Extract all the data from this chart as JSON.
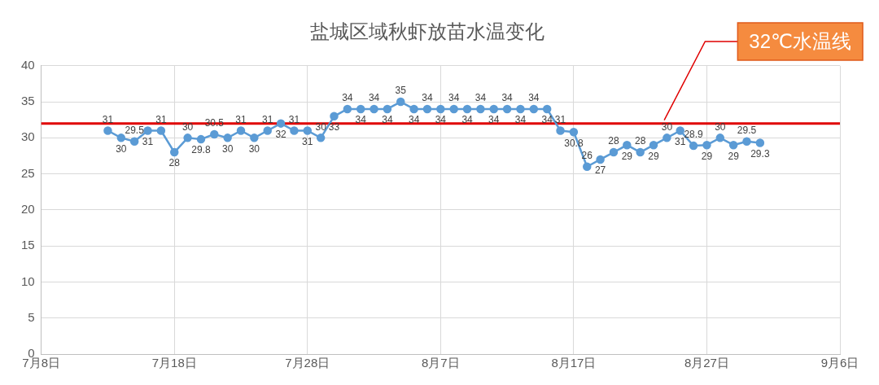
{
  "chart_data": {
    "type": "line",
    "title": "盐城区域秋虾放苗水温变化",
    "x": [
      "--07-13",
      "--07-14",
      "--07-15",
      "--07-16",
      "--07-17",
      "--07-18",
      "--07-19",
      "--07-20",
      "--07-21",
      "--07-22",
      "--07-23",
      "--07-24",
      "--07-25",
      "--07-26",
      "--07-27",
      "--07-28",
      "--07-29",
      "--07-30",
      "--07-31",
      "--08-01",
      "--08-02",
      "--08-03",
      "--08-04",
      "--08-05",
      "--08-06",
      "--08-07",
      "--08-08",
      "--08-09",
      "--08-10",
      "--08-11",
      "--08-12",
      "--08-13",
      "--08-14",
      "--08-15",
      "--08-16",
      "--08-17",
      "--08-18",
      "--08-19",
      "--08-20",
      "--08-21",
      "--08-22",
      "--08-23",
      "--08-24",
      "--08-25",
      "--08-26",
      "--08-27",
      "--08-28",
      "--08-29",
      "--08-30",
      "--08-31"
    ],
    "series": [
      {
        "color": "#5b9bd5",
        "values": [
          31,
          30,
          29.5,
          31,
          31,
          28,
          30,
          29.8,
          30.5,
          30,
          31,
          30,
          31,
          32,
          31,
          31,
          30,
          33,
          34,
          34,
          34,
          34,
          35,
          34,
          34,
          34,
          34,
          34,
          34,
          34,
          34,
          34,
          34,
          34,
          31,
          30.8,
          26,
          27,
          28,
          29,
          28,
          29,
          30,
          31,
          28.9,
          29,
          30,
          29,
          29.5,
          29.3
        ]
      }
    ],
    "xlim": [
      "--07-08",
      "--09-06"
    ],
    "xticks": [
      {
        "value": "--07-08",
        "label": "7月8日"
      },
      {
        "value": "--07-18",
        "label": "7月18日"
      },
      {
        "value": "--07-28",
        "label": "7月28日"
      },
      {
        "value": "--08-07",
        "label": "8月7日"
      },
      {
        "value": "--08-17",
        "label": "8月17日"
      },
      {
        "value": "--08-27",
        "label": "8月27日"
      },
      {
        "value": "--09-06",
        "label": "9月6日"
      }
    ],
    "ylim": [
      0,
      40
    ],
    "yticks": [
      0,
      5,
      10,
      15,
      20,
      25,
      30,
      35,
      40
    ],
    "ref_lines": [
      {
        "axis": "y",
        "value": 32,
        "label": "32℃水温线",
        "color": "#e00000"
      }
    ],
    "grid": true,
    "marker": "circle",
    "line_style": "solid",
    "data_labels": true,
    "legend": false
  }
}
